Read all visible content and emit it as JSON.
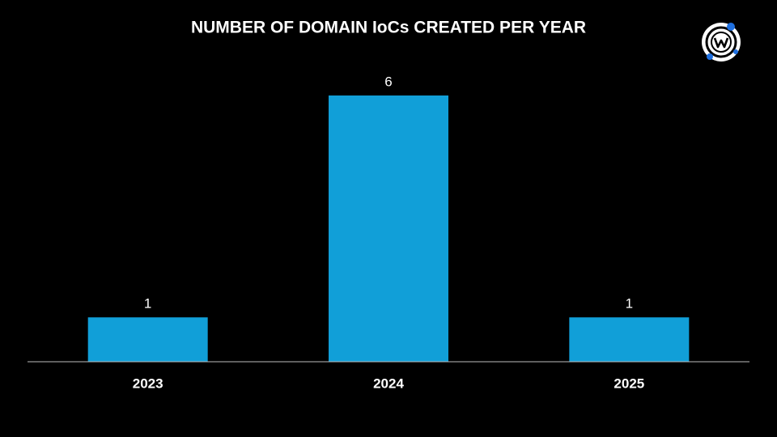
{
  "chart_data": {
    "type": "bar",
    "title": "NUMBER OF DOMAIN IoCs CREATED PER YEAR",
    "categories": [
      "2023",
      "2024",
      "2025"
    ],
    "values": [
      1,
      6,
      1
    ],
    "color": "#119fd8",
    "ylim": [
      0,
      6
    ]
  }
}
